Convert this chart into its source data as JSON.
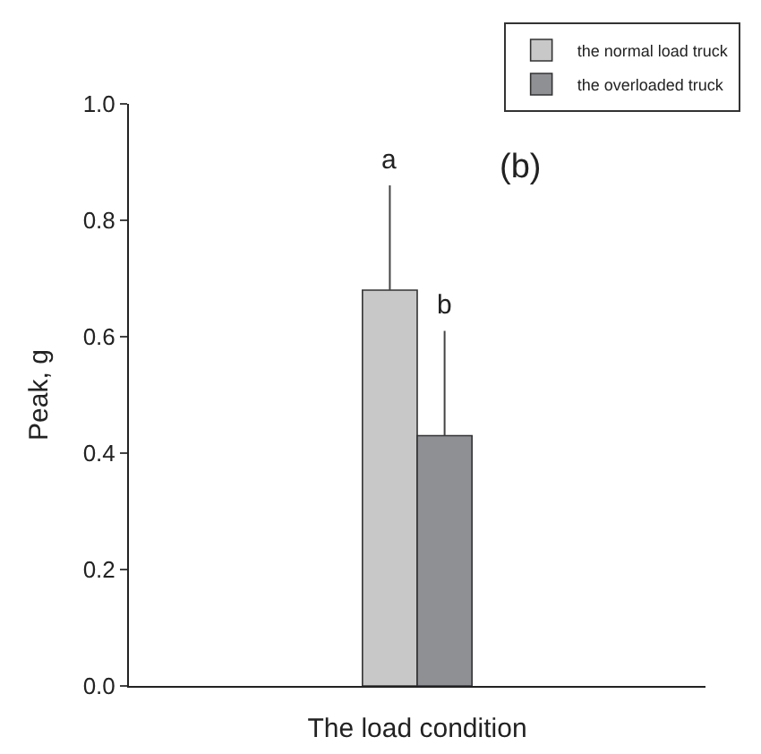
{
  "chart_data": {
    "type": "bar",
    "xlabel": "The load condition",
    "ylabel": "Peak, g",
    "categories": [
      null
    ],
    "series": [
      {
        "name": "the normal load truck",
        "color": "#c8c8c8",
        "values": [
          0.68
        ],
        "errors": [
          [
            0.68,
            0.86
          ]
        ]
      },
      {
        "name": "the overloaded truck",
        "color": "#8f9094",
        "values": [
          0.43
        ],
        "errors": [
          [
            0.43,
            0.61
          ]
        ]
      }
    ],
    "annotations": [
      {
        "text": "a",
        "y": 0.86
      },
      {
        "text": "b",
        "y": 0.61
      },
      "(b)"
    ],
    "ylim": [
      0,
      1.0
    ],
    "yticks": [
      {
        "value": 0,
        "label": "0.0"
      },
      {
        "value": 0.2,
        "label": "0.2"
      },
      {
        "value": 0.4,
        "label": "0.4"
      },
      {
        "value": 0.6,
        "label": "0.6"
      },
      {
        "value": 0.8,
        "label": "0.8"
      },
      {
        "value": 1.0,
        "label": "1.0"
      }
    ],
    "legend": "top right"
  }
}
